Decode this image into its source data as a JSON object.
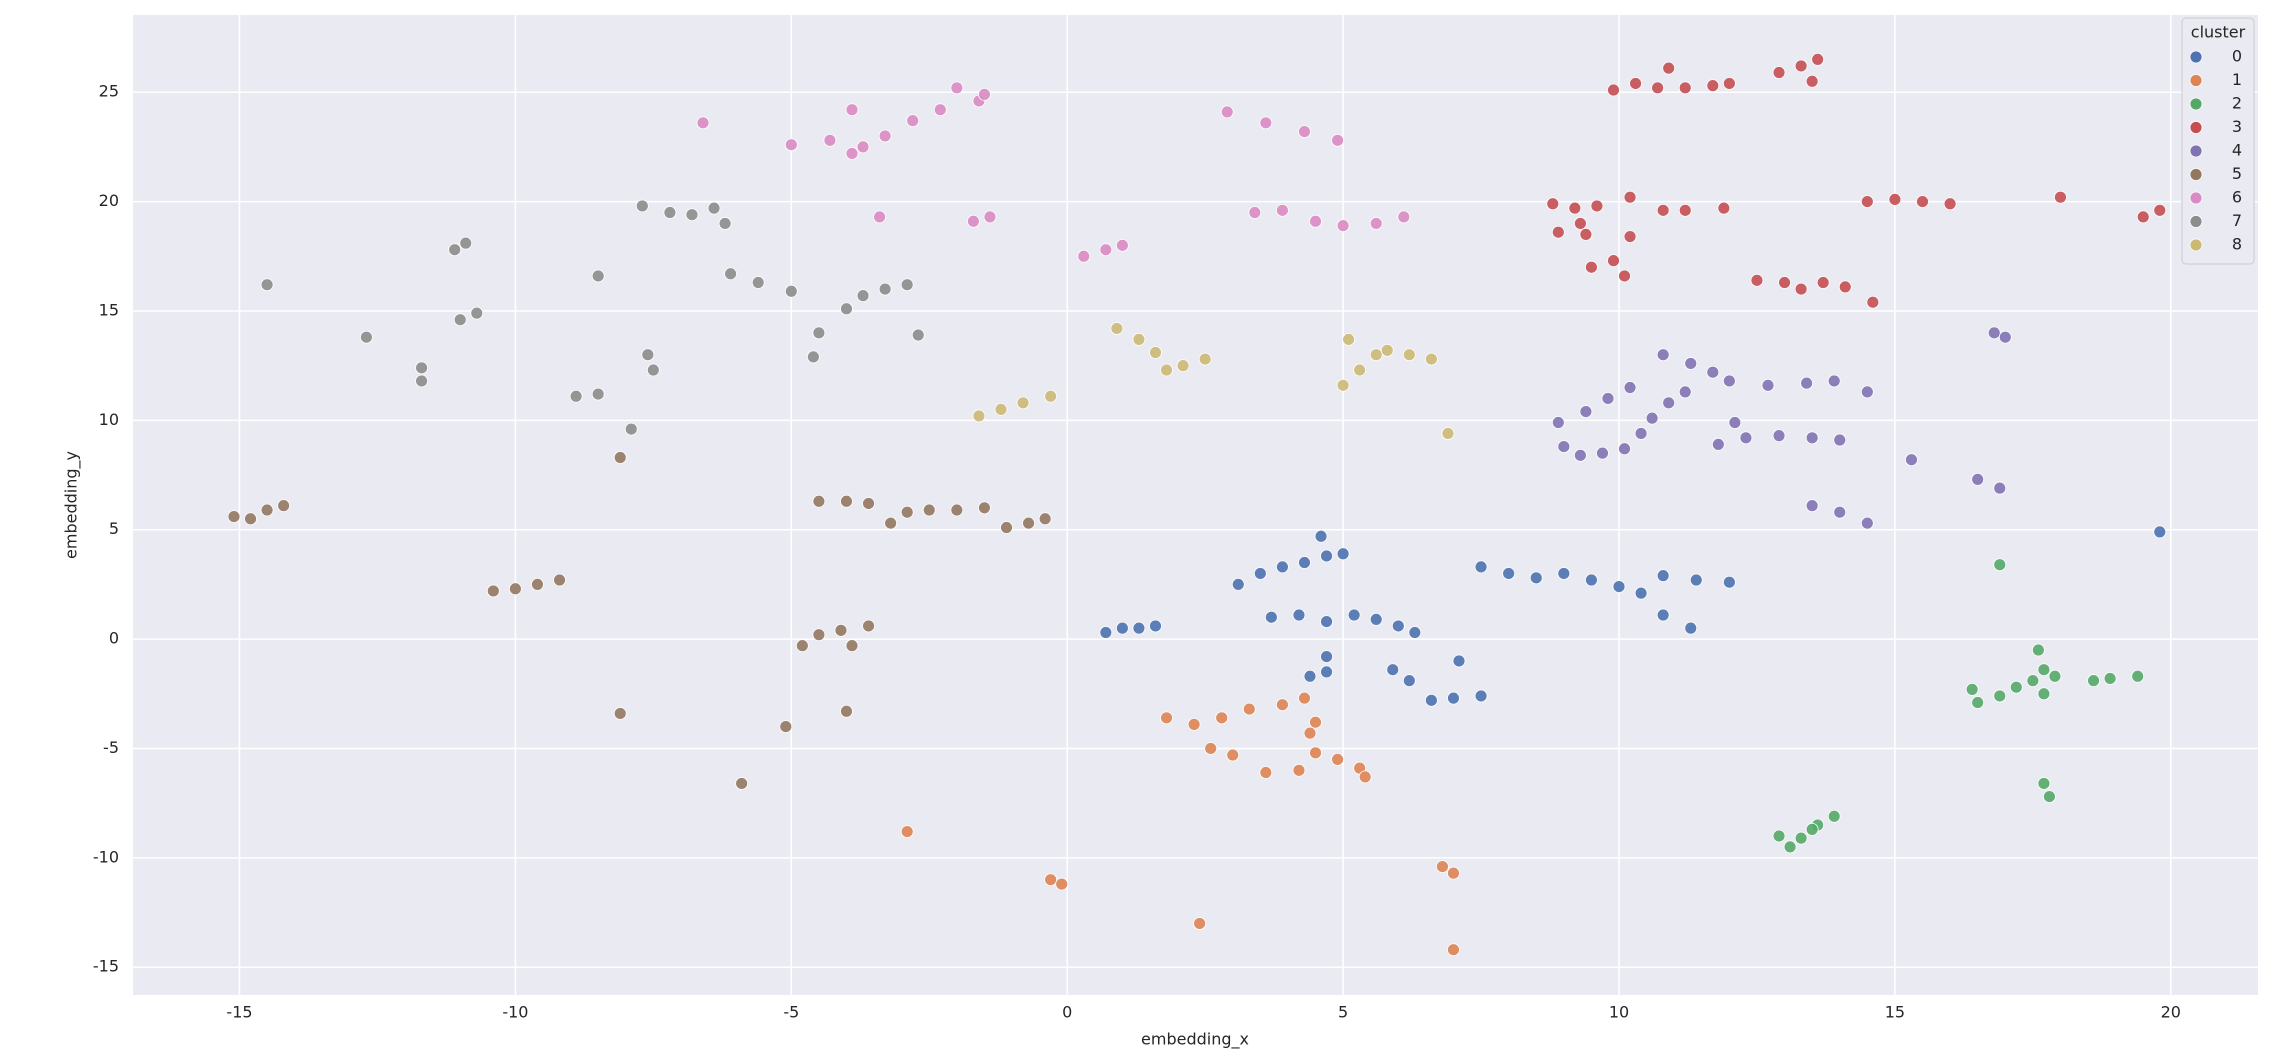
{
  "chart_data": {
    "type": "scatter",
    "xlabel": "embedding_x",
    "ylabel": "embedding_y",
    "legend_title": "cluster",
    "legend": "upper right",
    "grid": true,
    "xlim": [
      -16.93,
      21.58
    ],
    "ylim": [
      -16.27,
      28.53
    ],
    "xticks": [
      -15,
      -10,
      -5,
      0,
      5,
      10,
      15,
      20
    ],
    "yticks": [
      -15,
      -10,
      -5,
      0,
      5,
      10,
      15,
      20,
      25
    ],
    "series": [
      {
        "name": "0",
        "color": "#4c72b0",
        "x": [
          0.7,
          1.0,
          1.3,
          1.6,
          3.1,
          3.5,
          3.9,
          4.3,
          4.7,
          5.0,
          4.6,
          3.7,
          4.2,
          4.7,
          5.2,
          5.6,
          6.0,
          6.3,
          4.7,
          4.7,
          4.4,
          5.9,
          6.2,
          6.6,
          7.0,
          7.5,
          7.1,
          7.5,
          8.0,
          8.5,
          9.0,
          9.5,
          10.0,
          10.4,
          10.8,
          11.4,
          12.0,
          10.8,
          11.3,
          19.8
        ],
        "y": [
          0.3,
          0.5,
          0.5,
          0.6,
          2.5,
          3.0,
          3.3,
          3.5,
          3.8,
          3.9,
          4.7,
          1.0,
          1.1,
          0.8,
          1.1,
          0.9,
          0.6,
          0.3,
          -0.8,
          -1.5,
          -1.7,
          -1.4,
          -1.9,
          -2.8,
          -2.7,
          -2.6,
          -1.0,
          3.3,
          3.0,
          2.8,
          3.0,
          2.7,
          2.4,
          2.1,
          2.9,
          2.7,
          2.6,
          1.1,
          0.5,
          4.9
        ]
      },
      {
        "name": "1",
        "color": "#dd8452",
        "x": [
          1.8,
          2.3,
          2.8,
          3.3,
          3.9,
          4.3,
          4.5,
          4.4,
          2.6,
          3.0,
          4.5,
          4.9,
          5.3,
          5.4,
          3.6,
          4.2,
          -2.9,
          -0.3,
          -0.1,
          6.8,
          7.0,
          2.4,
          7.0
        ],
        "y": [
          -3.6,
          -3.9,
          -3.6,
          -3.2,
          -3.0,
          -2.7,
          -3.8,
          -4.3,
          -5.0,
          -5.3,
          -5.2,
          -5.5,
          -5.9,
          -6.3,
          -6.1,
          -6.0,
          -8.8,
          -11.0,
          -11.2,
          -10.4,
          -10.7,
          -13.0,
          -14.2
        ]
      },
      {
        "name": "2",
        "color": "#55a868",
        "x": [
          16.4,
          16.5,
          16.9,
          17.2,
          17.5,
          17.7,
          17.6,
          17.7,
          17.9,
          18.6,
          18.9,
          19.4,
          16.9,
          17.7,
          17.8,
          12.9,
          13.1,
          13.3,
          13.6,
          13.9,
          13.5
        ],
        "y": [
          -2.3,
          -2.9,
          -2.6,
          -2.2,
          -1.9,
          -2.5,
          -0.5,
          -1.4,
          -1.7,
          -1.9,
          -1.8,
          -1.7,
          3.4,
          -6.6,
          -7.2,
          -9.0,
          -9.5,
          -9.1,
          -8.5,
          -8.1,
          -8.7
        ]
      },
      {
        "name": "3",
        "color": "#c44e52",
        "x": [
          9.9,
          10.3,
          10.7,
          11.2,
          11.7,
          12.0,
          10.9,
          12.9,
          13.3,
          13.6,
          13.5,
          8.8,
          9.2,
          9.6,
          9.3,
          8.9,
          9.4,
          10.2,
          10.2,
          10.8,
          11.2,
          11.9,
          9.5,
          9.9,
          10.1,
          12.5,
          13.0,
          13.3,
          13.7,
          14.1,
          14.6,
          14.5,
          15.0,
          15.5,
          16.0,
          18.0,
          19.5,
          19.8
        ],
        "y": [
          25.1,
          25.4,
          25.2,
          25.2,
          25.3,
          25.4,
          26.1,
          25.9,
          26.2,
          26.5,
          25.5,
          19.9,
          19.7,
          19.8,
          19.0,
          18.6,
          18.5,
          18.4,
          20.2,
          19.6,
          19.6,
          19.7,
          17.0,
          17.3,
          16.6,
          16.4,
          16.3,
          16.0,
          16.3,
          16.1,
          15.4,
          20.0,
          20.1,
          20.0,
          19.9,
          20.2,
          19.3,
          19.6
        ]
      },
      {
        "name": "4",
        "color": "#8172b3",
        "x": [
          8.9,
          9.4,
          9.8,
          10.2,
          9.0,
          9.3,
          9.7,
          10.1,
          10.4,
          10.6,
          10.9,
          11.2,
          10.8,
          11.3,
          11.7,
          12.0,
          12.7,
          13.4,
          13.9,
          14.5,
          11.8,
          12.3,
          12.9,
          13.5,
          14.0,
          12.1,
          13.5,
          14.0,
          14.5,
          15.3,
          16.5,
          16.9,
          16.8,
          17.0
        ],
        "y": [
          9.9,
          10.4,
          11.0,
          11.5,
          8.8,
          8.4,
          8.5,
          8.7,
          9.4,
          10.1,
          10.8,
          11.3,
          13.0,
          12.6,
          12.2,
          11.8,
          11.6,
          11.7,
          11.8,
          11.3,
          8.9,
          9.2,
          9.3,
          9.2,
          9.1,
          9.9,
          6.1,
          5.8,
          5.3,
          8.2,
          7.3,
          6.9,
          14.0,
          13.8
        ]
      },
      {
        "name": "5",
        "color": "#937860",
        "x": [
          -15.1,
          -14.8,
          -14.5,
          -14.2,
          -10.4,
          -10.0,
          -9.6,
          -9.2,
          -8.1,
          -4.5,
          -4.0,
          -3.6,
          -3.2,
          -2.9,
          -2.5,
          -2.0,
          -1.5,
          -1.1,
          -0.7,
          -0.4,
          -4.8,
          -4.5,
          -4.1,
          -3.9,
          -3.6,
          -4.0,
          -5.1,
          -8.1,
          -5.9
        ],
        "y": [
          5.6,
          5.5,
          5.9,
          6.1,
          2.2,
          2.3,
          2.5,
          2.7,
          8.3,
          6.3,
          6.3,
          6.2,
          5.3,
          5.8,
          5.9,
          5.9,
          6.0,
          5.1,
          5.3,
          5.5,
          -0.3,
          0.2,
          0.4,
          -0.3,
          0.6,
          -3.3,
          -4.0,
          -3.4,
          -6.6
        ]
      },
      {
        "name": "6",
        "color": "#da8bc3",
        "x": [
          -6.6,
          -5.0,
          -4.3,
          -3.9,
          -3.7,
          -3.3,
          -2.8,
          -2.3,
          -2.0,
          -1.6,
          -1.5,
          -3.9,
          -3.4,
          -1.7,
          -1.4,
          0.3,
          0.7,
          1.0,
          2.9,
          3.6,
          4.3,
          4.9,
          3.4,
          3.9,
          4.5,
          5.0,
          5.6,
          6.1
        ],
        "y": [
          23.6,
          22.6,
          22.8,
          22.2,
          22.5,
          23.0,
          23.7,
          24.2,
          25.2,
          24.6,
          24.9,
          24.2,
          19.3,
          19.1,
          19.3,
          17.5,
          17.8,
          18.0,
          24.1,
          23.6,
          23.2,
          22.8,
          19.5,
          19.6,
          19.1,
          18.9,
          19.0,
          19.3
        ]
      },
      {
        "name": "7",
        "color": "#8c8c8c",
        "x": [
          -14.5,
          -12.7,
          -11.7,
          -11.7,
          -11.1,
          -10.9,
          -11.0,
          -10.7,
          -8.9,
          -8.5,
          -8.5,
          -7.6,
          -7.5,
          -7.9,
          -7.7,
          -7.2,
          -6.8,
          -6.4,
          -6.2,
          -6.1,
          -5.6,
          -5.0,
          -4.6,
          -4.5,
          -4.0,
          -3.7,
          -3.3,
          -2.9,
          -2.7
        ],
        "y": [
          16.2,
          13.8,
          12.4,
          11.8,
          17.8,
          18.1,
          14.6,
          14.9,
          11.1,
          11.2,
          16.6,
          13.0,
          12.3,
          9.6,
          19.8,
          19.5,
          19.4,
          19.7,
          19.0,
          16.7,
          16.3,
          15.9,
          12.9,
          14.0,
          15.1,
          15.7,
          16.0,
          16.2,
          13.9
        ]
      },
      {
        "name": "8",
        "color": "#ccb974",
        "x": [
          -1.6,
          -1.2,
          -0.8,
          -0.3,
          0.9,
          1.3,
          1.6,
          1.8,
          2.1,
          2.5,
          5.0,
          5.3,
          5.6,
          5.1,
          5.8,
          6.2,
          6.6,
          6.9
        ],
        "y": [
          10.2,
          10.5,
          10.8,
          11.1,
          14.2,
          13.7,
          13.1,
          12.3,
          12.5,
          12.8,
          11.6,
          12.3,
          13.0,
          13.7,
          13.2,
          13.0,
          12.8,
          9.4
        ]
      }
    ]
  }
}
